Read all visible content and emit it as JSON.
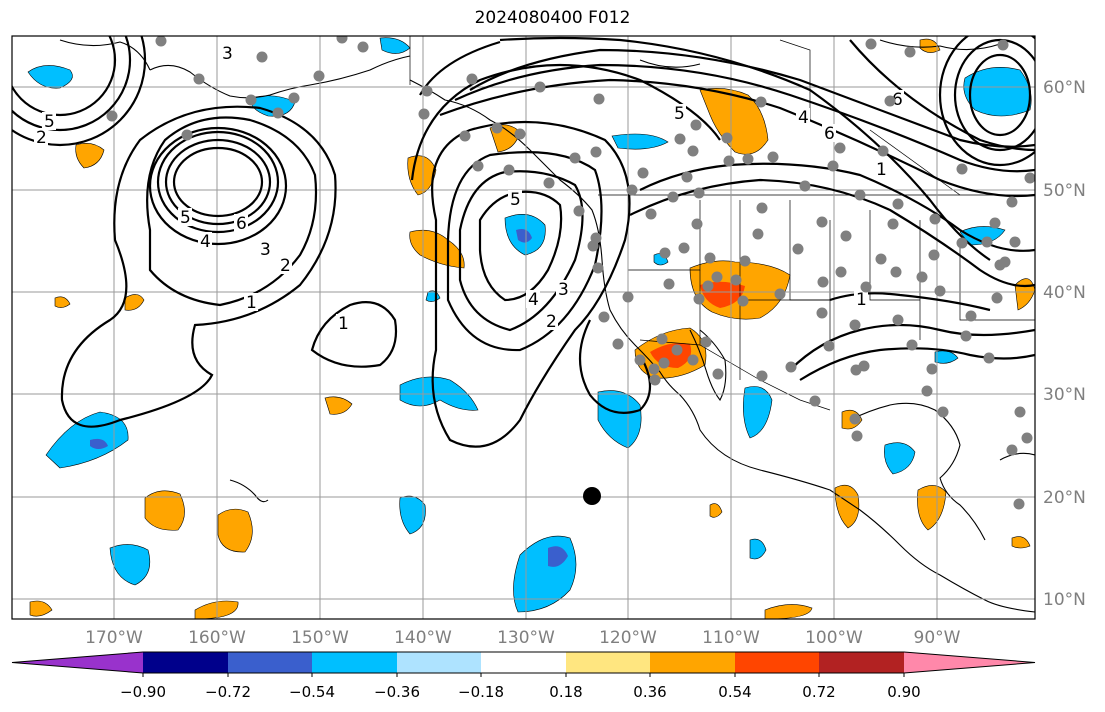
{
  "title": "2024080400 F012",
  "lon_labels": [
    "170°W",
    "160°W",
    "150°W",
    "140°W",
    "130°W",
    "120°W",
    "110°W",
    "100°W",
    "90°W"
  ],
  "lat_labels": [
    "60°N",
    "50°N",
    "40°N",
    "30°N",
    "20°N",
    "10°N"
  ],
  "colorbar": {
    "ticks": [
      "−0.90",
      "−0.72",
      "−0.54",
      "−0.36",
      "−0.18",
      "0.18",
      "0.36",
      "0.54",
      "0.72",
      "0.90"
    ],
    "colors": [
      "#9932cc",
      "#00008b",
      "#3a5fcd",
      "#00bfff",
      "#aee3ff",
      "#ffffff",
      "#ffe680",
      "#ffa500",
      "#ff4500",
      "#b22222",
      "#ff88aa"
    ]
  },
  "contour_labels": [
    "1",
    "2",
    "3",
    "4",
    "5",
    "6",
    "1",
    "2",
    "3",
    "4",
    "5",
    "1",
    "2",
    "3",
    "4",
    "5",
    "6",
    "1",
    "5",
    "6"
  ],
  "colors": {
    "grid": "#9a9a9a",
    "station": "#808080",
    "contour": "#000000"
  }
}
